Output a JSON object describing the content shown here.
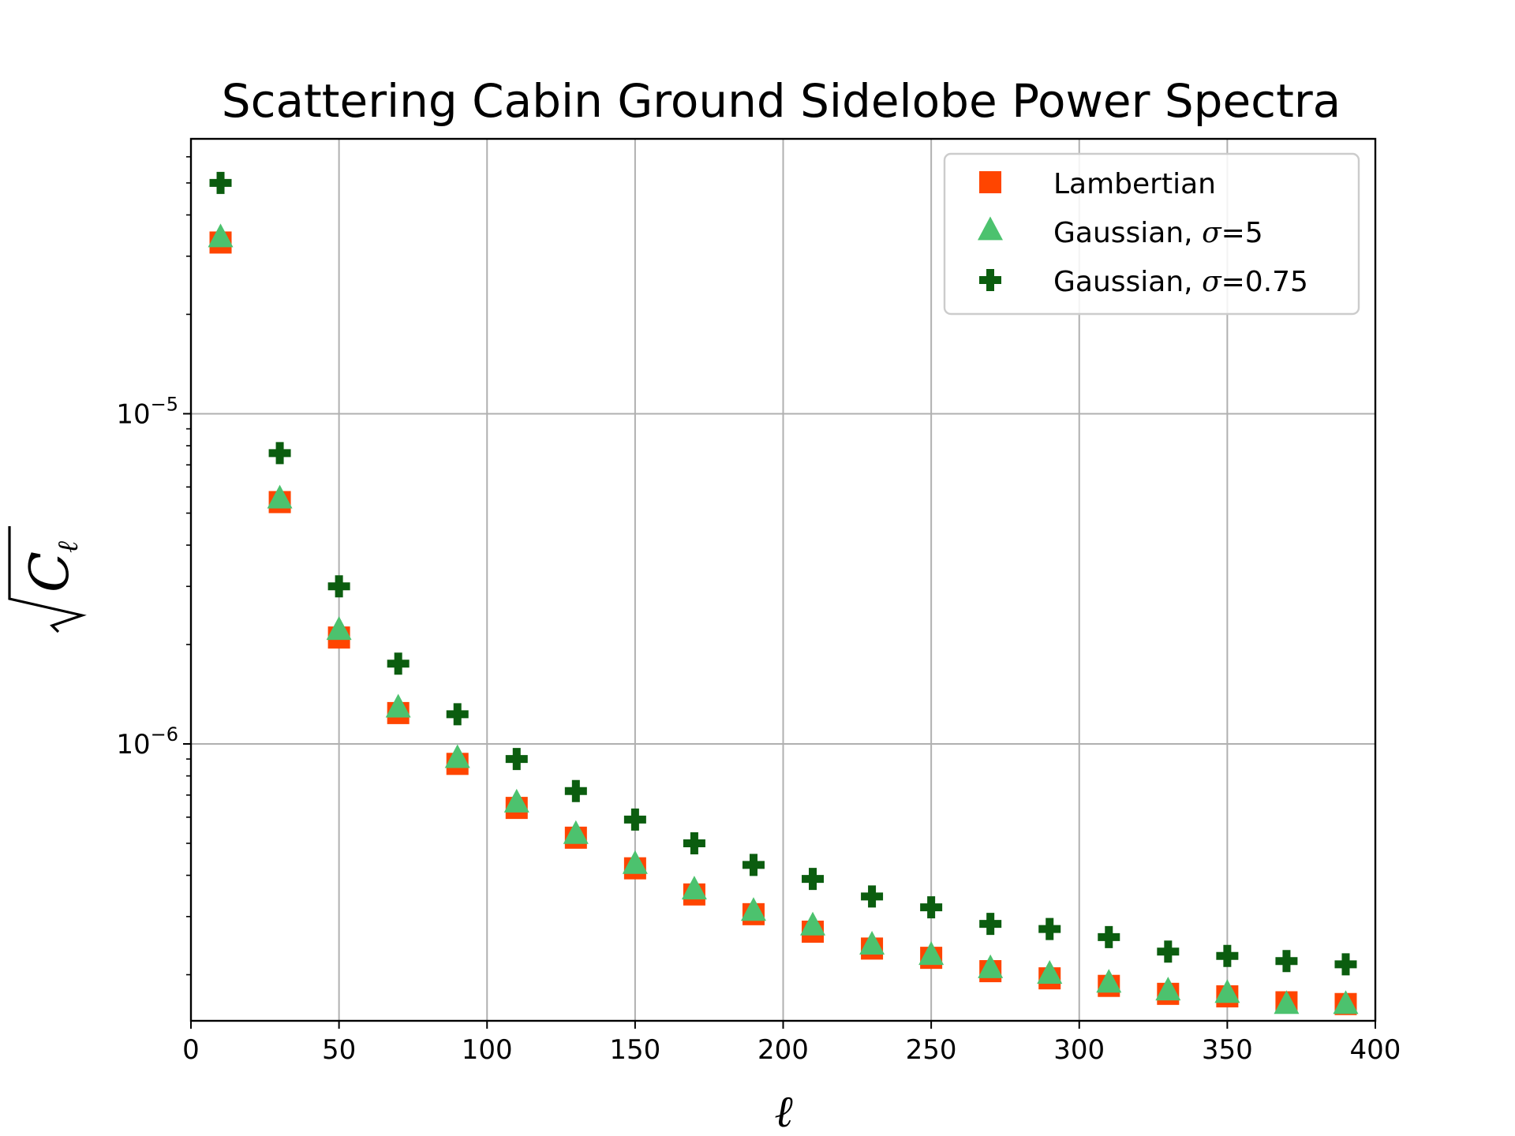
{
  "chart_data": {
    "type": "scatter",
    "title": "Scattering Cabin Ground Sidelobe Power Spectra",
    "xlabel": "ℓ",
    "ylabel": "√C_ℓ",
    "ylabel_main": "C",
    "ylabel_sub": "ℓ",
    "x_scale": "linear",
    "y_scale": "log",
    "xlim": [
      0,
      400
    ],
    "ylim": [
      1.45e-07,
      6.8e-05
    ],
    "xticks": [
      0,
      50,
      100,
      150,
      200,
      250,
      300,
      350,
      400
    ],
    "xtick_labels": [
      "0",
      "50",
      "100",
      "150",
      "200",
      "250",
      "300",
      "350",
      "400"
    ],
    "yticks_major": [
      1e-05,
      1e-06
    ],
    "ytick_labels": [
      {
        "value": 1e-05,
        "base": "10",
        "exp": "−5"
      },
      {
        "value": 1e-06,
        "base": "10",
        "exp": "−6"
      }
    ],
    "grid": true,
    "legend_position": "top-right",
    "x": [
      10,
      30,
      50,
      70,
      90,
      110,
      130,
      150,
      170,
      190,
      210,
      230,
      250,
      270,
      290,
      310,
      330,
      350,
      370,
      390
    ],
    "series": [
      {
        "name": "Lambertian",
        "label_prefix": "Lambertian",
        "label_sigma": "",
        "marker": "square",
        "color": "#ff4500",
        "values": [
          3.3e-05,
          5.4e-06,
          2.1e-06,
          1.24e-06,
          8.7e-07,
          6.4e-07,
          5.2e-07,
          4.2e-07,
          3.5e-07,
          3.05e-07,
          2.7e-07,
          2.4e-07,
          2.25e-07,
          2.05e-07,
          1.95e-07,
          1.85e-07,
          1.75e-07,
          1.72e-07,
          1.65e-07,
          1.63e-07
        ]
      },
      {
        "name": "Gaussian, σ=5",
        "label_prefix": "Gaussian, ",
        "label_sigma": "σ",
        "label_suffix": "=5",
        "marker": "triangle",
        "color": "#4cc26e",
        "values": [
          3.4e-05,
          5.5e-06,
          2.2e-06,
          1.28e-06,
          9e-07,
          6.6e-07,
          5.3e-07,
          4.3e-07,
          3.6e-07,
          3.1e-07,
          2.8e-07,
          2.45e-07,
          2.28e-07,
          2.08e-07,
          2e-07,
          1.88e-07,
          1.78e-07,
          1.75e-07,
          1.62e-07,
          1.62e-07
        ]
      },
      {
        "name": "Gaussian, σ=0.75",
        "label_prefix": "Gaussian, ",
        "label_sigma": "σ",
        "label_suffix": "=0.75",
        "marker": "plus",
        "color": "#0b5d0f",
        "values": [
          5e-05,
          7.6e-06,
          3e-06,
          1.75e-06,
          1.23e-06,
          9e-07,
          7.2e-07,
          5.9e-07,
          5e-07,
          4.3e-07,
          3.9e-07,
          3.45e-07,
          3.2e-07,
          2.85e-07,
          2.75e-07,
          2.6e-07,
          2.35e-07,
          2.28e-07,
          2.2e-07,
          2.15e-07
        ]
      }
    ]
  }
}
